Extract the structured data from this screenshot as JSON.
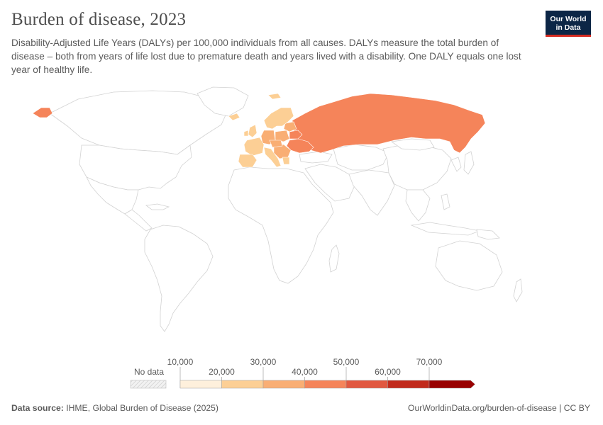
{
  "header": {
    "title": "Burden of disease, 2023",
    "subtitle": "Disability-Adjusted Life Years (DALYs) per 100,000 individuals from all causes. DALYs measure the total burden of disease – both from years of life lost due to premature death and years lived with a disability. One DALY equals one lost year of healthy life."
  },
  "logo": {
    "line1": "Our World",
    "line2": "in Data"
  },
  "legend": {
    "no_data_label": "No data",
    "ticks": [
      "10,000",
      "20,000",
      "30,000",
      "40,000",
      "50,000",
      "60,000",
      "70,000"
    ],
    "bins": [
      {
        "color": "#fef0dc"
      },
      {
        "color": "#fccf95"
      },
      {
        "color": "#f9ae74"
      },
      {
        "color": "#f5845a"
      },
      {
        "color": "#e15840"
      },
      {
        "color": "#c12a1c"
      },
      {
        "color": "#990000"
      }
    ]
  },
  "map_regions": [
    {
      "name": "Russia",
      "color": "#f5845a"
    },
    {
      "name": "Alaska (US)",
      "color": "#f5845a"
    },
    {
      "name": "Ukraine",
      "color": "#f5845a"
    },
    {
      "name": "Belarus",
      "color": "#f5845a"
    },
    {
      "name": "Baltic states",
      "color": "#f9ae74"
    },
    {
      "name": "Poland",
      "color": "#f9ae74"
    },
    {
      "name": "Germany",
      "color": "#f9ae74"
    },
    {
      "name": "France",
      "color": "#fccf95"
    },
    {
      "name": "Spain",
      "color": "#fccf95"
    },
    {
      "name": "Portugal",
      "color": "#fccf95"
    },
    {
      "name": "Italy",
      "color": "#fccf95"
    },
    {
      "name": "United Kingdom",
      "color": "#fccf95"
    },
    {
      "name": "Ireland",
      "color": "#fccf95"
    },
    {
      "name": "Norway",
      "color": "#fccf95"
    },
    {
      "name": "Sweden",
      "color": "#fccf95"
    },
    {
      "name": "Finland",
      "color": "#fccf95"
    },
    {
      "name": "Iceland",
      "color": "#fccf95"
    },
    {
      "name": "Romania",
      "color": "#f9ae74"
    },
    {
      "name": "Balkans",
      "color": "#f9ae74"
    },
    {
      "name": "Hungary",
      "color": "#f9ae74"
    },
    {
      "name": "Czechia",
      "color": "#f9ae74"
    },
    {
      "name": "Moldova",
      "color": "#f5845a"
    },
    {
      "name": "Bulgaria",
      "color": "#f9ae74"
    },
    {
      "name": "Austria",
      "color": "#fccf95"
    },
    {
      "name": "Greece",
      "color": "#fccf95"
    }
  ],
  "footer": {
    "source_label": "Data source:",
    "source_text": "IHME, Global Burden of Disease (2025)",
    "url": "OurWorldinData.org/burden-of-disease | CC BY"
  }
}
